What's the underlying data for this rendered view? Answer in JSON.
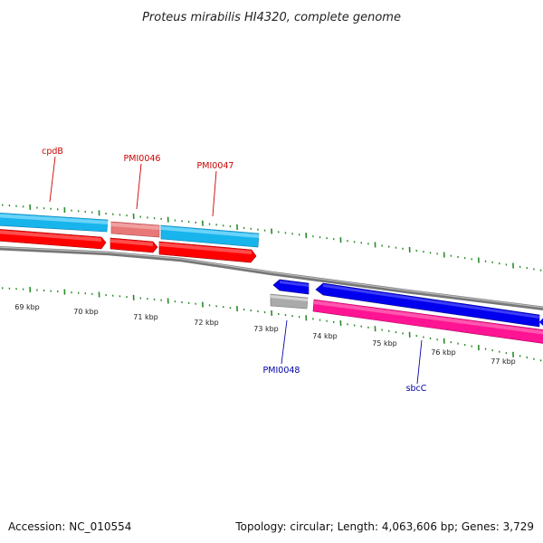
{
  "title": "Proteus mirabilis HI4320, complete genome",
  "footer": {
    "accession": "Accession: NC_010554",
    "summary": "Topology: circular; Length: 4,063,606 bp; Genes: 3,729"
  },
  "scale_labels": [
    "69 kbp",
    "70 kbp",
    "71 kbp",
    "72 kbp",
    "73 kbp",
    "74 kbp",
    "75 kbp",
    "76 kbp",
    "77 kbp"
  ],
  "gene_labels": {
    "cpdB": "cpdB",
    "PMI0046": "PMI0046",
    "PMI0047": "PMI0047",
    "PMI0048": "PMI0048",
    "sbcC": "sbcC"
  },
  "colors": {
    "forward_label": "#cc0000",
    "reverse_label": "#0000aa",
    "cds_light_blue": "#18b4ec",
    "cds_red": "#ff0000",
    "cds_pink": "#ff1493",
    "cds_blue": "#0000ee",
    "cds_salmon": "#e87878",
    "cds_grey": "#aaaaaa",
    "backbone": "#888888",
    "ticks": "#2a8a2a"
  }
}
